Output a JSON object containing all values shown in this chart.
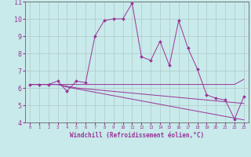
{
  "xlabel": "Windchill (Refroidissement éolien,°C)",
  "bg_color": "#c8eaea",
  "grid_color": "#b0c8c8",
  "line_color": "#993399",
  "x": [
    0,
    1,
    2,
    3,
    4,
    5,
    6,
    7,
    8,
    9,
    10,
    11,
    12,
    13,
    14,
    15,
    16,
    17,
    18,
    19,
    20,
    21,
    22,
    23
  ],
  "y_main": [
    6.2,
    6.2,
    6.2,
    6.4,
    5.8,
    6.4,
    6.3,
    9.0,
    9.9,
    10.0,
    10.0,
    10.9,
    7.8,
    7.6,
    8.7,
    7.3,
    9.9,
    8.3,
    7.1,
    5.6,
    5.4,
    5.3,
    4.2,
    5.5
  ],
  "y_line1": [
    6.2,
    6.2,
    6.2,
    6.2,
    6.2,
    6.2,
    6.2,
    6.2,
    6.2,
    6.2,
    6.2,
    6.2,
    6.2,
    6.2,
    6.2,
    6.2,
    6.2,
    6.2,
    6.2,
    6.2,
    6.2,
    6.2,
    6.2,
    6.5
  ],
  "y_line2": [
    6.2,
    6.2,
    6.2,
    6.2,
    6.1,
    6.0,
    5.95,
    5.9,
    5.85,
    5.8,
    5.75,
    5.7,
    5.65,
    5.6,
    5.55,
    5.5,
    5.45,
    5.4,
    5.35,
    5.3,
    5.25,
    5.2,
    5.15,
    5.1
  ],
  "y_line3": [
    6.2,
    6.2,
    6.2,
    6.2,
    6.05,
    5.95,
    5.85,
    5.75,
    5.65,
    5.55,
    5.45,
    5.35,
    5.25,
    5.15,
    5.05,
    4.95,
    4.85,
    4.75,
    4.65,
    4.55,
    4.45,
    4.35,
    4.25,
    4.15
  ],
  "ylim": [
    4,
    11
  ],
  "xlim": [
    -0.5,
    23.5
  ],
  "yticks": [
    4,
    5,
    6,
    7,
    8,
    9,
    10,
    11
  ],
  "xticks": [
    0,
    1,
    2,
    3,
    4,
    5,
    6,
    7,
    8,
    9,
    10,
    11,
    12,
    13,
    14,
    15,
    16,
    17,
    18,
    19,
    20,
    21,
    22,
    23
  ]
}
